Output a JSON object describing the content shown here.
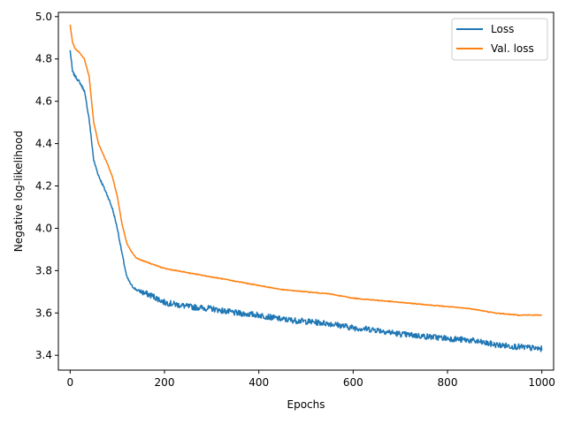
{
  "chart_data": {
    "type": "line",
    "title": "",
    "xlabel": "Epochs",
    "ylabel": "Negative log-likelihood",
    "xlim": [
      -25,
      1025
    ],
    "ylim": [
      3.33,
      5.02
    ],
    "xticks": [
      0,
      200,
      400,
      600,
      800,
      1000
    ],
    "yticks": [
      3.4,
      3.6,
      3.8,
      4.0,
      4.2,
      4.4,
      4.6,
      4.8,
      5.0
    ],
    "xtick_labels": [
      "0",
      "200",
      "400",
      "600",
      "800",
      "1000"
    ],
    "ytick_labels": [
      "3.4",
      "3.6",
      "3.8",
      "4.0",
      "4.2",
      "4.4",
      "4.6",
      "4.8",
      "5.0"
    ],
    "grid": false,
    "legend_position": "top-right",
    "series": [
      {
        "name": "Loss",
        "color": "#1f77b4",
        "noisy": true,
        "x": [
          0,
          5,
          10,
          20,
          30,
          40,
          50,
          60,
          70,
          80,
          90,
          100,
          110,
          120,
          130,
          140,
          150,
          175,
          200,
          250,
          300,
          350,
          400,
          450,
          500,
          550,
          600,
          650,
          700,
          750,
          800,
          850,
          900,
          950,
          1000
        ],
        "y": [
          4.84,
          4.74,
          4.72,
          4.69,
          4.65,
          4.52,
          4.32,
          4.25,
          4.2,
          4.15,
          4.09,
          4.0,
          3.88,
          3.77,
          3.73,
          3.71,
          3.7,
          3.68,
          3.65,
          3.63,
          3.62,
          3.6,
          3.59,
          3.57,
          3.56,
          3.55,
          3.53,
          3.52,
          3.5,
          3.49,
          3.48,
          3.47,
          3.45,
          3.44,
          3.43
        ]
      },
      {
        "name": "Val. loss",
        "color": "#ff7f0e",
        "noisy": false,
        "x": [
          0,
          5,
          10,
          20,
          30,
          40,
          50,
          60,
          70,
          80,
          90,
          100,
          110,
          120,
          130,
          140,
          150,
          175,
          200,
          250,
          300,
          350,
          400,
          450,
          500,
          550,
          600,
          650,
          700,
          750,
          800,
          850,
          900,
          950,
          1000
        ],
        "y": [
          4.96,
          4.88,
          4.85,
          4.83,
          4.8,
          4.72,
          4.5,
          4.4,
          4.35,
          4.3,
          4.24,
          4.15,
          4.02,
          3.93,
          3.89,
          3.86,
          3.85,
          3.83,
          3.81,
          3.79,
          3.77,
          3.75,
          3.73,
          3.71,
          3.7,
          3.69,
          3.67,
          3.66,
          3.65,
          3.64,
          3.63,
          3.62,
          3.6,
          3.59,
          3.59
        ]
      }
    ]
  }
}
